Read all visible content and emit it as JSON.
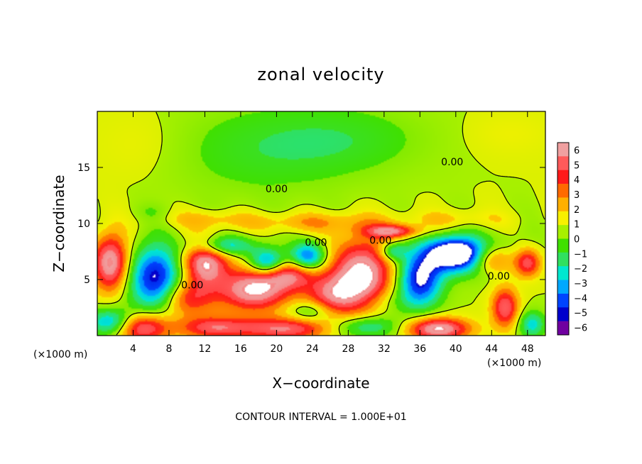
{
  "chart_data": {
    "type": "heatmap",
    "title": "zonal velocity",
    "xlabel": "X−coordinate",
    "ylabel": "Z−coordinate",
    "x_unit_left": "(×1000 m)",
    "x_unit_right": "(×1000 m)",
    "xlim": [
      0,
      50
    ],
    "ylim": [
      0,
      20
    ],
    "x_ticks": [
      4,
      8,
      12,
      16,
      20,
      24,
      28,
      32,
      36,
      40,
      44,
      48
    ],
    "y_ticks": [
      5,
      10,
      15
    ],
    "footnote": "CONTOUR INTERVAL = 1.000E+01",
    "colorbar": {
      "labels": [
        "6",
        "5",
        "4",
        "3",
        "2",
        "1",
        "0",
        "−1",
        "−2",
        "−3",
        "−4",
        "−5",
        "−6"
      ],
      "colors": [
        "#f0a0a0",
        "#ff5a5a",
        "#ff1a1a",
        "#ff6a00",
        "#ffb000",
        "#f8f000",
        "#a8f000",
        "#40e000",
        "#30e060",
        "#00e8d0",
        "#00a8ff",
        "#0044ff",
        "#0000cc",
        "#7000a0"
      ]
    },
    "contour_labels": [
      {
        "x": 20,
        "z": 12.8,
        "text": "0.00"
      },
      {
        "x": 39.6,
        "z": 15.2,
        "text": "0.00"
      },
      {
        "x": 24.4,
        "z": 8.0,
        "text": "0.00"
      },
      {
        "x": 31.6,
        "z": 8.2,
        "text": "0.00"
      },
      {
        "x": 10.6,
        "z": 4.2,
        "text": "0.00"
      },
      {
        "x": 44.8,
        "z": 5.0,
        "text": "0.00"
      }
    ],
    "blobs": [
      {
        "x": 18,
        "z": 16.5,
        "rx": 10,
        "rz": 4,
        "v": -1.6
      },
      {
        "x": 28,
        "z": 17.5,
        "rx": 9,
        "rz": 3,
        "v": -1.5
      },
      {
        "x": 5,
        "z": 17,
        "rx": 5,
        "rz": 3,
        "v": 0.6
      },
      {
        "x": 46,
        "z": 18,
        "rx": 5,
        "rz": 2,
        "v": 0.6
      },
      {
        "x": 24,
        "z": 10.1,
        "rx": 8,
        "rz": 0.9,
        "v": 1.9
      },
      {
        "x": 12,
        "z": 10.4,
        "rx": 5,
        "rz": 0.8,
        "v": 1.4
      },
      {
        "x": 40,
        "z": 10.4,
        "rx": 6,
        "rz": 0.8,
        "v": 1.2
      },
      {
        "x": 33,
        "z": 9.3,
        "rx": 3,
        "rz": 0.6,
        "v": 5.0
      },
      {
        "x": 6,
        "z": 11.0,
        "rx": 2,
        "rz": 0.8,
        "v": -0.8
      },
      {
        "x": 1.5,
        "z": 6.5,
        "rx": 2,
        "rz": 2.5,
        "v": 6.5
      },
      {
        "x": 6.5,
        "z": 5.1,
        "rx": 3,
        "rz": 2.9,
        "v": -6.5
      },
      {
        "x": 5,
        "z": 0.7,
        "rx": 3,
        "rz": 1.3,
        "v": 5.5
      },
      {
        "x": 12,
        "z": 6.5,
        "rx": 2.5,
        "rz": 2.0,
        "v": 6.3
      },
      {
        "x": 17.5,
        "z": 4.1,
        "rx": 4,
        "rz": 1.9,
        "v": 6.5
      },
      {
        "x": 21.5,
        "z": 5.5,
        "rx": 3,
        "rz": 1.3,
        "v": 4.5
      },
      {
        "x": 19,
        "z": 6.5,
        "rx": 2,
        "rz": 1.2,
        "v": -5.5
      },
      {
        "x": 14,
        "z": 8.0,
        "rx": 3.5,
        "rz": 0.9,
        "v": -4.0
      },
      {
        "x": 23.5,
        "z": 7.0,
        "rx": 2.0,
        "rz": 1.3,
        "v": -5.5
      },
      {
        "x": 10,
        "z": 3.3,
        "rx": 3,
        "rz": 1.6,
        "v": 4.0
      },
      {
        "x": 29.5,
        "z": 5.3,
        "rx": 3.5,
        "rz": 3.2,
        "v": 7.0
      },
      {
        "x": 26,
        "z": 3.5,
        "rx": 3,
        "rz": 1.8,
        "v": 4.0
      },
      {
        "x": 36,
        "z": 5.0,
        "rx": 2.5,
        "rz": 2.4,
        "v": -6.5
      },
      {
        "x": 42,
        "z": 7.0,
        "rx": 4.5,
        "rz": 1.6,
        "v": -6.0
      },
      {
        "x": 44,
        "z": 6.8,
        "rx": 2.5,
        "rz": 1.3,
        "v": 6.5
      },
      {
        "x": 39.5,
        "z": 7.5,
        "rx": 3,
        "rz": 1.4,
        "v": -5.0
      },
      {
        "x": 38,
        "z": 0.6,
        "rx": 3.5,
        "rz": 1.0,
        "v": 6.5
      },
      {
        "x": 45.5,
        "z": 2.5,
        "rx": 1.5,
        "rz": 1.8,
        "v": 5.0
      },
      {
        "x": 48,
        "z": 6.5,
        "rx": 1.5,
        "rz": 1.3,
        "v": 5.0
      },
      {
        "x": 32,
        "z": 3.0,
        "rx": 3.5,
        "rz": 1.3,
        "v": -1.5
      },
      {
        "x": 21,
        "z": 0.6,
        "rx": 5,
        "rz": 1.0,
        "v": 5.0
      },
      {
        "x": 13,
        "z": 0.7,
        "rx": 4,
        "rz": 1.0,
        "v": 4.5
      },
      {
        "x": 30,
        "z": 0.8,
        "rx": 4,
        "rz": 1.0,
        "v": -3.5
      },
      {
        "x": 1.5,
        "z": 1.2,
        "rx": 2.5,
        "rz": 1.2,
        "v": -4.5
      },
      {
        "x": 48.5,
        "z": 1.0,
        "rx": 1.5,
        "rz": 1.2,
        "v": -3.5
      },
      {
        "x": 33,
        "z": 7.5,
        "rx": 1.5,
        "rz": 0.8,
        "v": -3.5
      },
      {
        "x": 24,
        "z": 2.2,
        "rx": 2.5,
        "rz": 1.0,
        "v": -2.5
      }
    ]
  }
}
